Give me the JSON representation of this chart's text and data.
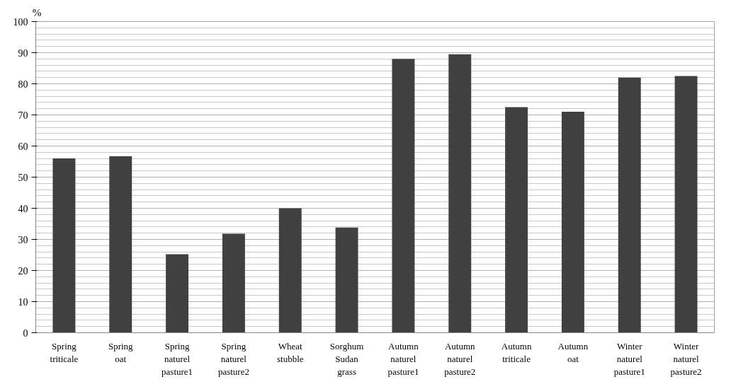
{
  "chart_data": {
    "type": "bar",
    "ylabel": "%",
    "categories": [
      "Spring triticale",
      "Spring oat",
      "Spring naturel pasture1",
      "Spring naturel pasture2",
      "Wheat stubble",
      "Sorghum Sudan grass",
      "Autumn naturel pasture1",
      "Autumn naturel pasture2",
      "Autumn triticale",
      "Autumn oat",
      "Winter naturel pasture1",
      "Winter naturel pasture2"
    ],
    "values": [
      56,
      56.7,
      25.2,
      31.8,
      40,
      33.8,
      88,
      89.5,
      72.5,
      71,
      82,
      82.5
    ],
    "color": "#404040",
    "ylim": [
      0,
      100
    ],
    "yticks": [
      0,
      10,
      20,
      30,
      40,
      50,
      60,
      70,
      80,
      90,
      100
    ],
    "grid": "y"
  }
}
